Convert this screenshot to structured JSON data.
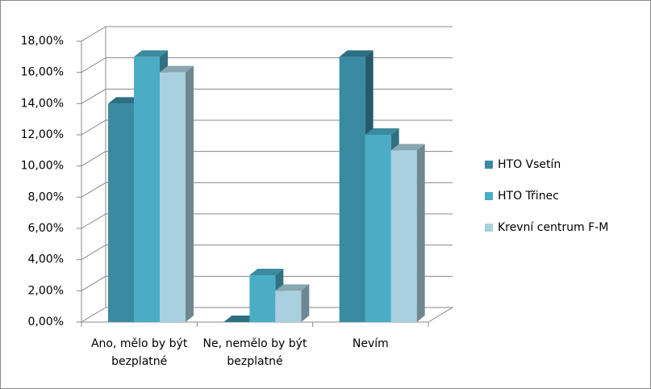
{
  "chart_data": {
    "type": "bar3d",
    "categories": [
      "Ano, mělo by být bezplatné",
      "Ne, nemělo by být bezplatné",
      "Nevím"
    ],
    "series": [
      {
        "name": "HTO Vsetín",
        "color": "#3a8aa3",
        "values": [
          14,
          0,
          17
        ]
      },
      {
        "name": "HTO Třinec",
        "color": "#4bacc6",
        "values": [
          17,
          3,
          12
        ]
      },
      {
        "name": "Krevní centrum F-M",
        "color": "#a9d0de",
        "values": [
          16,
          2,
          11
        ]
      }
    ],
    "ylim": [
      0,
      18
    ],
    "yticks": [
      {
        "value": 0,
        "label": "0,00%"
      },
      {
        "value": 2,
        "label": "2,00%"
      },
      {
        "value": 4,
        "label": "4,00%"
      },
      {
        "value": 6,
        "label": "6,00%"
      },
      {
        "value": 8,
        "label": "8,00%"
      },
      {
        "value": 10,
        "label": "10,00%"
      },
      {
        "value": 12,
        "label": "12,00%"
      },
      {
        "value": 14,
        "label": "14,00%"
      },
      {
        "value": 16,
        "label": "16,00%"
      },
      {
        "value": 18,
        "label": "18,00%"
      }
    ],
    "grid": true,
    "legend": "right"
  }
}
